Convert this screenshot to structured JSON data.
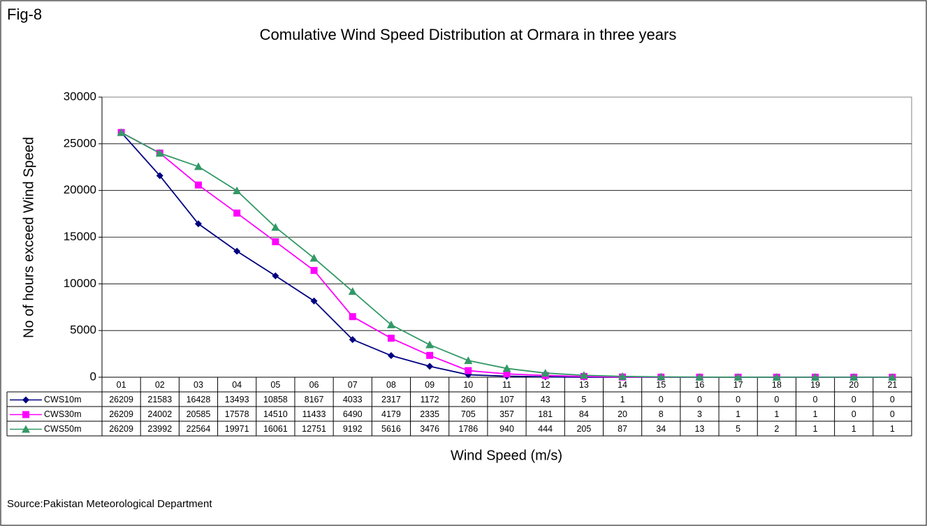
{
  "chart_data": {
    "type": "line",
    "label": "Fig-8",
    "title": "Comulative Wind Speed Distribution at Ormara in three years",
    "y_label": "No of hours  exceed Wind Speed",
    "x_label": "Wind Speed (m/s)",
    "source": "Source:Pakistan Meteorological Department",
    "categories": [
      "01",
      "02",
      "03",
      "04",
      "05",
      "06",
      "07",
      "08",
      "09",
      "10",
      "11",
      "12",
      "13",
      "14",
      "15",
      "16",
      "17",
      "18",
      "19",
      "20",
      "21"
    ],
    "series": [
      {
        "name": "CWS10m",
        "color": "#000080",
        "marker": "diamond",
        "values": [
          26209,
          21583,
          16428,
          13493,
          10858,
          8167,
          4033,
          2317,
          1172,
          260,
          107,
          43,
          5,
          1,
          0,
          0,
          0,
          0,
          0,
          0,
          0
        ]
      },
      {
        "name": "CWS30m",
        "color": "#ff00ff",
        "marker": "square",
        "values": [
          26209,
          24002,
          20585,
          17578,
          14510,
          11433,
          6490,
          4179,
          2335,
          705,
          357,
          181,
          84,
          20,
          8,
          3,
          1,
          1,
          1,
          0,
          0
        ]
      },
      {
        "name": "CWS50m",
        "color": "#339966",
        "marker": "triangle",
        "values": [
          26209,
          23992,
          22564,
          19971,
          16061,
          12751,
          9192,
          5616,
          3476,
          1786,
          940,
          444,
          205,
          87,
          34,
          13,
          5,
          2,
          1,
          1,
          1
        ]
      }
    ],
    "ylim": [
      0,
      30000
    ],
    "yticks": [
      0,
      5000,
      10000,
      15000,
      20000,
      25000,
      30000
    ],
    "grid": true
  }
}
